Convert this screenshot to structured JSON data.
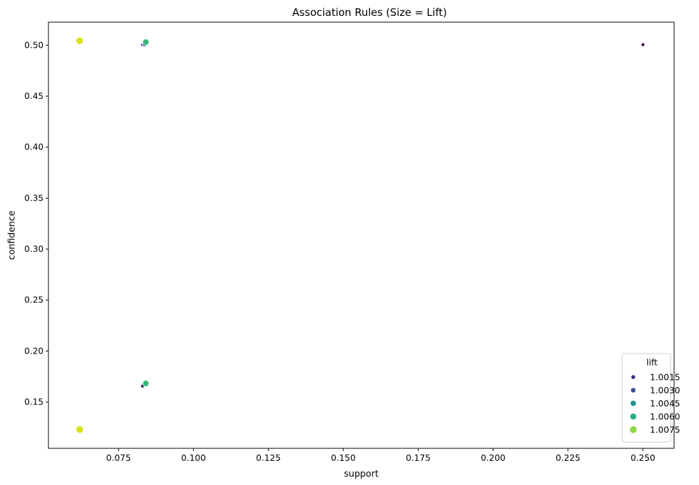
{
  "chart_data": {
    "type": "scatter",
    "title": "Association Rules (Size = Lift)",
    "xlabel": "support",
    "ylabel": "confidence",
    "xlim": [
      0.0516,
      0.2604
    ],
    "ylim": [
      0.1046,
      0.5226
    ],
    "x_ticks": [
      "0.075",
      "0.100",
      "0.125",
      "0.150",
      "0.175",
      "0.200",
      "0.225",
      "0.250"
    ],
    "y_ticks": [
      "0.15",
      "0.20",
      "0.25",
      "0.30",
      "0.35",
      "0.40",
      "0.45",
      "0.50"
    ],
    "x_tick_values": [
      0.075,
      0.1,
      0.125,
      0.15,
      0.175,
      0.2,
      0.225,
      0.25
    ],
    "y_tick_values": [
      0.15,
      0.2,
      0.25,
      0.3,
      0.35,
      0.4,
      0.45,
      0.5
    ],
    "points": [
      {
        "x": 0.062,
        "y": 0.5043,
        "lift": 1.0085,
        "color": "#d8e219"
      },
      {
        "x": 0.062,
        "y": 0.1231,
        "lift": 1.0085,
        "color": "#d8e219"
      },
      {
        "x": 0.083,
        "y": 0.5005,
        "lift": 1.001,
        "color": "#482475"
      },
      {
        "x": 0.0837,
        "y": 0.501,
        "lift": 1.0035,
        "color": "#31688e"
      },
      {
        "x": 0.0841,
        "y": 0.503,
        "lift": 1.0062,
        "color": "#35b779"
      },
      {
        "x": 0.083,
        "y": 0.1657,
        "lift": 1.001,
        "color": "#482475"
      },
      {
        "x": 0.0841,
        "y": 0.1682,
        "lift": 1.0062,
        "color": "#35b779"
      },
      {
        "x": 0.25,
        "y": 0.5005,
        "lift": 1.0008,
        "color": "#440154"
      }
    ],
    "legend": {
      "title": "lift",
      "placement": "bottom-right",
      "entries": [
        {
          "label": "1.0015",
          "lift": 1.0015,
          "color": "#472d7b"
        },
        {
          "label": "1.0030",
          "lift": 1.003,
          "color": "#3b528b"
        },
        {
          "label": "1.0045",
          "lift": 1.0045,
          "color": "#21918c"
        },
        {
          "label": "1.0060",
          "lift": 1.006,
          "color": "#2ab07f"
        },
        {
          "label": "1.0075",
          "lift": 1.0075,
          "color": "#90d743"
        }
      ]
    },
    "grid": false
  }
}
